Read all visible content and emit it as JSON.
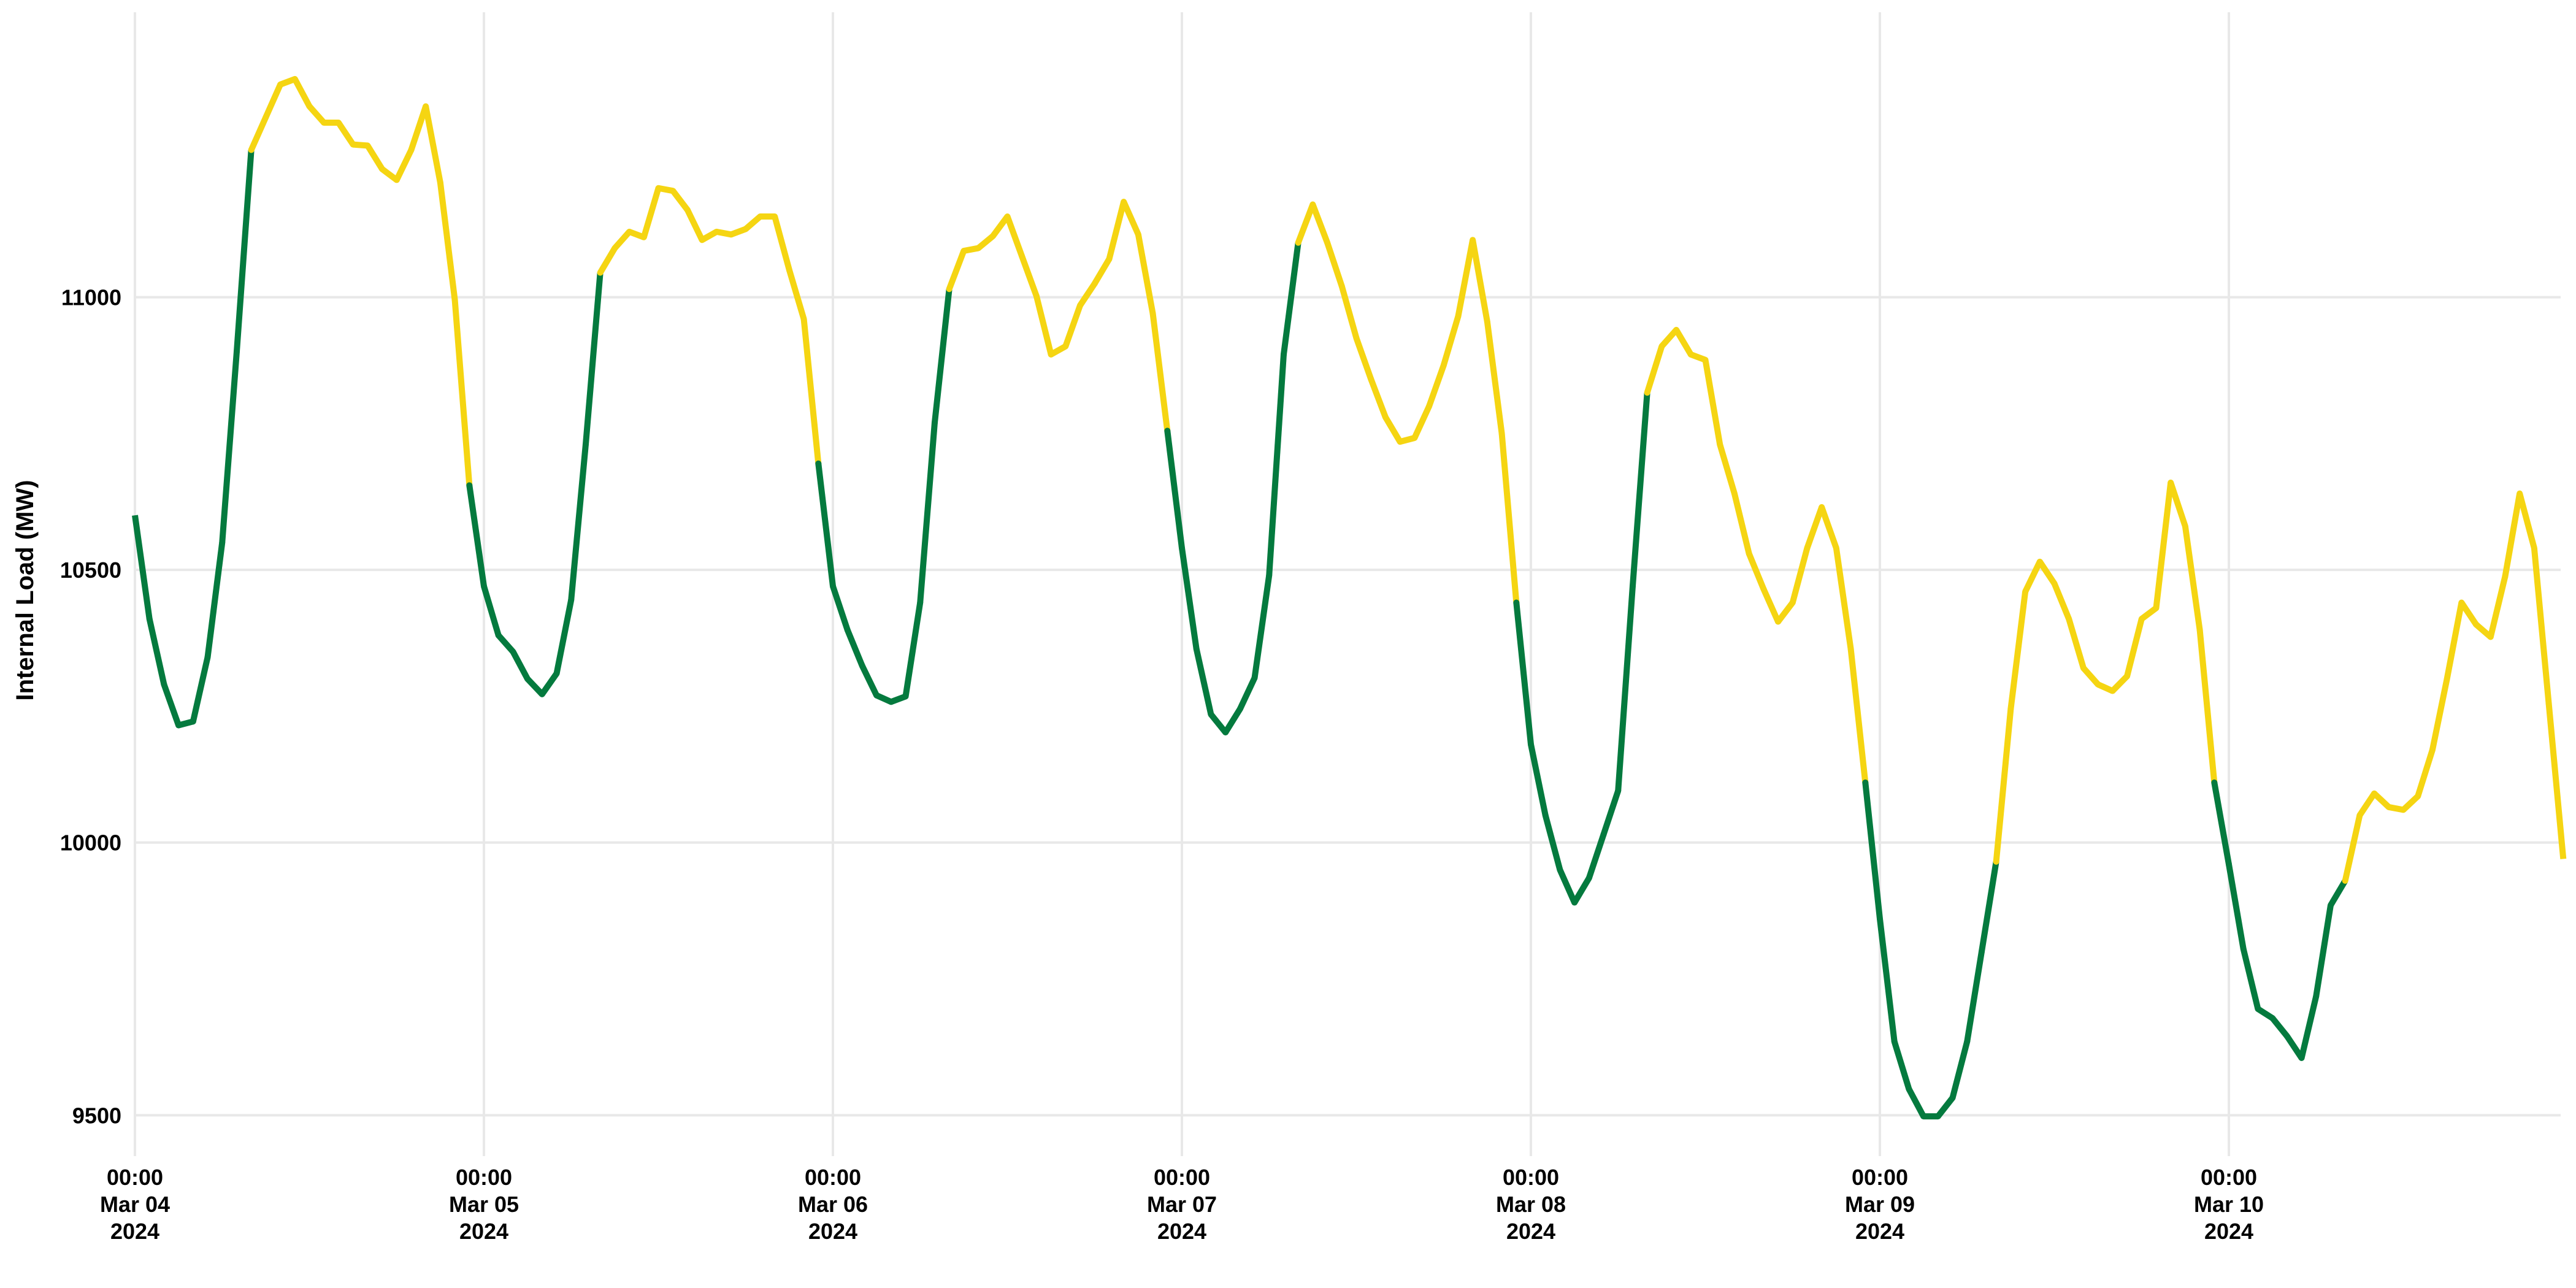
{
  "chart_data": {
    "type": "line",
    "title": "",
    "xlabel": "",
    "ylabel": "Internal Load (MW)",
    "ylim": [
      9425,
      11500
    ],
    "yticks": [
      9500,
      10000,
      10500,
      11000
    ],
    "x_start": "2024-03-04 00:00",
    "x_interval_hours": 1,
    "xticks": [
      {
        "l1": "00:00",
        "l2": "Mar 04",
        "l3": "2024",
        "day": 0
      },
      {
        "l1": "00:00",
        "l2": "Mar 05",
        "l3": "2024",
        "day": 1
      },
      {
        "l1": "00:00",
        "l2": "Mar 06",
        "l3": "2024",
        "day": 2
      },
      {
        "l1": "00:00",
        "l2": "Mar 07",
        "l3": "2024",
        "day": 3
      },
      {
        "l1": "00:00",
        "l2": "Mar 08",
        "l3": "2024",
        "day": 4
      },
      {
        "l1": "00:00",
        "l2": "Mar 09",
        "l3": "2024",
        "day": 5
      },
      {
        "l1": "00:00",
        "l2": "Mar 10",
        "l3": "2024",
        "day": 6
      }
    ],
    "grid": true,
    "legend": "none",
    "colors": {
      "off_peak": "#047a3e",
      "on_peak": "#f5d512"
    },
    "segment_rule": "hours 08:00–23:00 drawn in on_peak color, hours 23:00–08:00 in off_peak color",
    "values": [
      10600,
      10410,
      10290,
      10215,
      10222,
      10340,
      10550,
      10900,
      11270,
      11330,
      11390,
      11400,
      11350,
      11320,
      11320,
      11280,
      11278,
      11235,
      11215,
      11270,
      11350,
      11210,
      10995,
      10655,
      10470,
      10380,
      10350,
      10300,
      10272,
      10310,
      10445,
      10730,
      11045,
      11090,
      11120,
      11110,
      11200,
      11195,
      11160,
      11105,
      11120,
      11115,
      11125,
      11148,
      11148,
      11050,
      10960,
      10695,
      10470,
      10390,
      10325,
      10270,
      10258,
      10268,
      10440,
      10770,
      11015,
      11085,
      11090,
      11112,
      11148,
      11075,
      11002,
      10895,
      10910,
      10985,
      11025,
      11070,
      11175,
      11115,
      10970,
      10755,
      10540,
      10355,
      10235,
      10202,
      10245,
      10302,
      10490,
      10895,
      11100,
      11170,
      11100,
      11020,
      10925,
      10850,
      10780,
      10735,
      10742,
      10800,
      10875,
      10965,
      11105,
      10955,
      10750,
      10440,
      10180,
      10050,
      9950,
      9890,
      9935,
      10015,
      10095,
      10470,
      10825,
      10910,
      10940,
      10895,
      10885,
      10730,
      10640,
      10530,
      10465,
      10405,
      10440,
      10540,
      10615,
      10540,
      10355,
      10110,
      9860,
      9635,
      9548,
      9498,
      9498,
      9532,
      9635,
      9800,
      9965,
      10245,
      10460,
      10515,
      10475,
      10410,
      10320,
      10290,
      10278,
      10305,
      10410,
      10430,
      10660,
      10580,
      10390,
      10110,
      9960,
      9805,
      9695,
      9678,
      9645,
      9605,
      9718,
      9885,
      9930,
      10050,
      10090,
      10065,
      10060,
      10085,
      10170,
      10300,
      10440,
      10400,
      10377,
      10488,
      10640,
      10540,
      10255,
      9970
    ]
  }
}
